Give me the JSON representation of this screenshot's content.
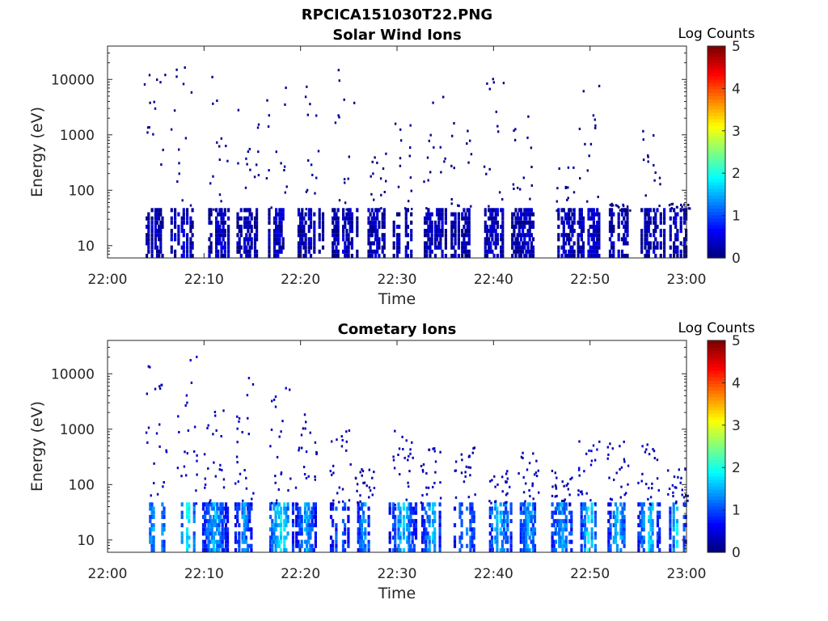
{
  "figure_title": "RPCICA151030T22.PNG",
  "chart_data": [
    {
      "type": "heatmap",
      "title": "Solar Wind Ions",
      "xlabel": "Time",
      "ylabel": "Energy (eV)",
      "x_ticks": [
        "22:00",
        "22:10",
        "22:20",
        "22:30",
        "22:40",
        "22:50",
        "23:00"
      ],
      "xlim_minutes": [
        0,
        60
      ],
      "y_ticks": [
        "10",
        "100",
        "1000",
        "10000"
      ],
      "ylim": [
        6,
        40000
      ],
      "y_scale": "log",
      "colorbar": {
        "label": "Log Counts",
        "range": [
          0,
          5
        ],
        "ticks": [
          "0",
          "1",
          "2",
          "3",
          "4",
          "5"
        ],
        "colormap": "jet"
      },
      "bursts": [
        {
          "minute": 4.8,
          "low_energy_level": 0.35,
          "scatter_level": 0.1,
          "max_energy": 20000
        },
        {
          "minute": 7.6,
          "low_energy_level": 0.4,
          "scatter_level": 0.1,
          "max_energy": 20000
        },
        {
          "minute": 11.5,
          "low_energy_level": 0.35,
          "scatter_level": 0.1,
          "max_energy": 15000
        },
        {
          "minute": 14.5,
          "low_energy_level": 0.3,
          "scatter_level": 0.1,
          "max_energy": 12000
        },
        {
          "minute": 17.5,
          "low_energy_level": 0.35,
          "scatter_level": 0.1,
          "max_energy": 10000
        },
        {
          "minute": 21.0,
          "low_energy_level": 0.35,
          "scatter_level": 0.1,
          "max_energy": 15000
        },
        {
          "minute": 24.5,
          "low_energy_level": 0.3,
          "scatter_level": 0.1,
          "max_energy": 30000
        },
        {
          "minute": 27.8,
          "low_energy_level": 0.3,
          "scatter_level": 0.05,
          "max_energy": 500
        },
        {
          "minute": 30.5,
          "low_energy_level": 0.35,
          "scatter_level": 0.05,
          "max_energy": 2000
        },
        {
          "minute": 33.8,
          "low_energy_level": 0.35,
          "scatter_level": 0.05,
          "max_energy": 10000
        },
        {
          "minute": 36.5,
          "low_energy_level": 0.3,
          "scatter_level": 0.05,
          "max_energy": 2500
        },
        {
          "minute": 40.0,
          "low_energy_level": 0.35,
          "scatter_level": 0.05,
          "max_energy": 20000
        },
        {
          "minute": 43.0,
          "low_energy_level": 0.3,
          "scatter_level": 0.05,
          "max_energy": 2500
        },
        {
          "minute": 47.5,
          "low_energy_level": 0.3,
          "scatter_level": 0.05,
          "max_energy": 300
        },
        {
          "minute": 49.8,
          "low_energy_level": 0.45,
          "scatter_level": 0.1,
          "max_energy": 9000
        },
        {
          "minute": 53.0,
          "low_energy_level": 0.3,
          "scatter_level": 0.05,
          "max_energy": 60
        },
        {
          "minute": 56.5,
          "low_energy_level": 0.3,
          "scatter_level": 0.05,
          "max_energy": 1500
        },
        {
          "minute": 59.2,
          "low_energy_level": 0.3,
          "scatter_level": 0.05,
          "max_energy": 60
        }
      ]
    },
    {
      "type": "heatmap",
      "title": "Cometary Ions",
      "xlabel": "Time",
      "ylabel": "Energy (eV)",
      "x_ticks": [
        "22:00",
        "22:10",
        "22:20",
        "22:30",
        "22:40",
        "22:50",
        "23:00"
      ],
      "xlim_minutes": [
        0,
        60
      ],
      "y_ticks": [
        "10",
        "100",
        "1000",
        "10000"
      ],
      "ylim": [
        6,
        40000
      ],
      "y_scale": "log",
      "colorbar": {
        "label": "Log Counts",
        "range": [
          0,
          5
        ],
        "ticks": [
          "0",
          "1",
          "2",
          "3",
          "4",
          "5"
        ],
        "colormap": "jet"
      },
      "bursts": [
        {
          "minute": 5.0,
          "low_energy_level": 1.7,
          "scatter_level": 0.3,
          "max_energy": 15000
        },
        {
          "minute": 8.2,
          "low_energy_level": 1.9,
          "scatter_level": 0.4,
          "max_energy": 28000
        },
        {
          "minute": 11.0,
          "low_energy_level": 1.5,
          "scatter_level": 0.3,
          "max_energy": 2500
        },
        {
          "minute": 14.0,
          "low_energy_level": 1.4,
          "scatter_level": 0.3,
          "max_energy": 10000
        },
        {
          "minute": 17.8,
          "low_energy_level": 1.8,
          "scatter_level": 0.3,
          "max_energy": 6000
        },
        {
          "minute": 20.5,
          "low_energy_level": 1.5,
          "scatter_level": 0.3,
          "max_energy": 2000
        },
        {
          "minute": 24.0,
          "low_energy_level": 1.3,
          "scatter_level": 0.3,
          "max_energy": 1000
        },
        {
          "minute": 26.5,
          "low_energy_level": 1.4,
          "scatter_level": 0.2,
          "max_energy": 200
        },
        {
          "minute": 30.5,
          "low_energy_level": 1.6,
          "scatter_level": 0.3,
          "max_energy": 1000
        },
        {
          "minute": 33.5,
          "low_energy_level": 1.6,
          "scatter_level": 0.3,
          "max_energy": 500
        },
        {
          "minute": 37.0,
          "low_energy_level": 1.4,
          "scatter_level": 0.2,
          "max_energy": 500
        },
        {
          "minute": 40.5,
          "low_energy_level": 1.6,
          "scatter_level": 0.3,
          "max_energy": 200
        },
        {
          "minute": 43.5,
          "low_energy_level": 1.4,
          "scatter_level": 0.3,
          "max_energy": 400
        },
        {
          "minute": 47.0,
          "low_energy_level": 1.4,
          "scatter_level": 0.2,
          "max_energy": 200
        },
        {
          "minute": 49.8,
          "low_energy_level": 1.9,
          "scatter_level": 0.4,
          "max_energy": 700
        },
        {
          "minute": 52.8,
          "low_energy_level": 1.7,
          "scatter_level": 0.3,
          "max_energy": 800
        },
        {
          "minute": 56.0,
          "low_energy_level": 1.7,
          "scatter_level": 0.3,
          "max_energy": 600
        },
        {
          "minute": 59.0,
          "low_energy_level": 1.8,
          "scatter_level": 0.3,
          "max_energy": 200
        }
      ]
    }
  ]
}
